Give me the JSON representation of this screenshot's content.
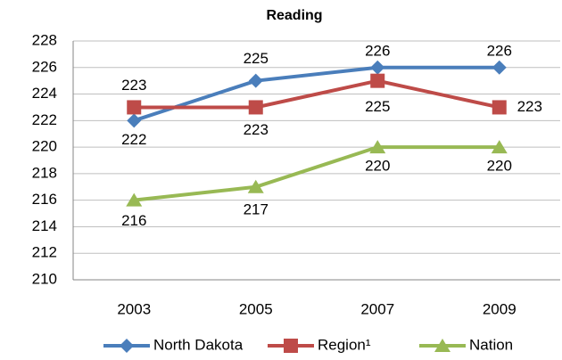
{
  "chart_data": {
    "type": "line",
    "title": "Reading",
    "categories": [
      "2003",
      "2005",
      "2007",
      "2009"
    ],
    "series": [
      {
        "name": "North Dakota",
        "color": "#4a7ebb",
        "marker": "diamond",
        "values": [
          222,
          225,
          226,
          226
        ]
      },
      {
        "name": "Region¹",
        "color": "#be4b48",
        "marker": "square",
        "values": [
          223,
          223,
          225,
          223
        ]
      },
      {
        "name": "Nation",
        "color": "#98b954",
        "marker": "triangle",
        "values": [
          216,
          217,
          220,
          220
        ]
      }
    ],
    "ylim": [
      210,
      228
    ],
    "yticks": [
      210,
      212,
      214,
      216,
      218,
      220,
      222,
      224,
      226,
      228
    ],
    "grid": true,
    "legend": "bottom"
  }
}
